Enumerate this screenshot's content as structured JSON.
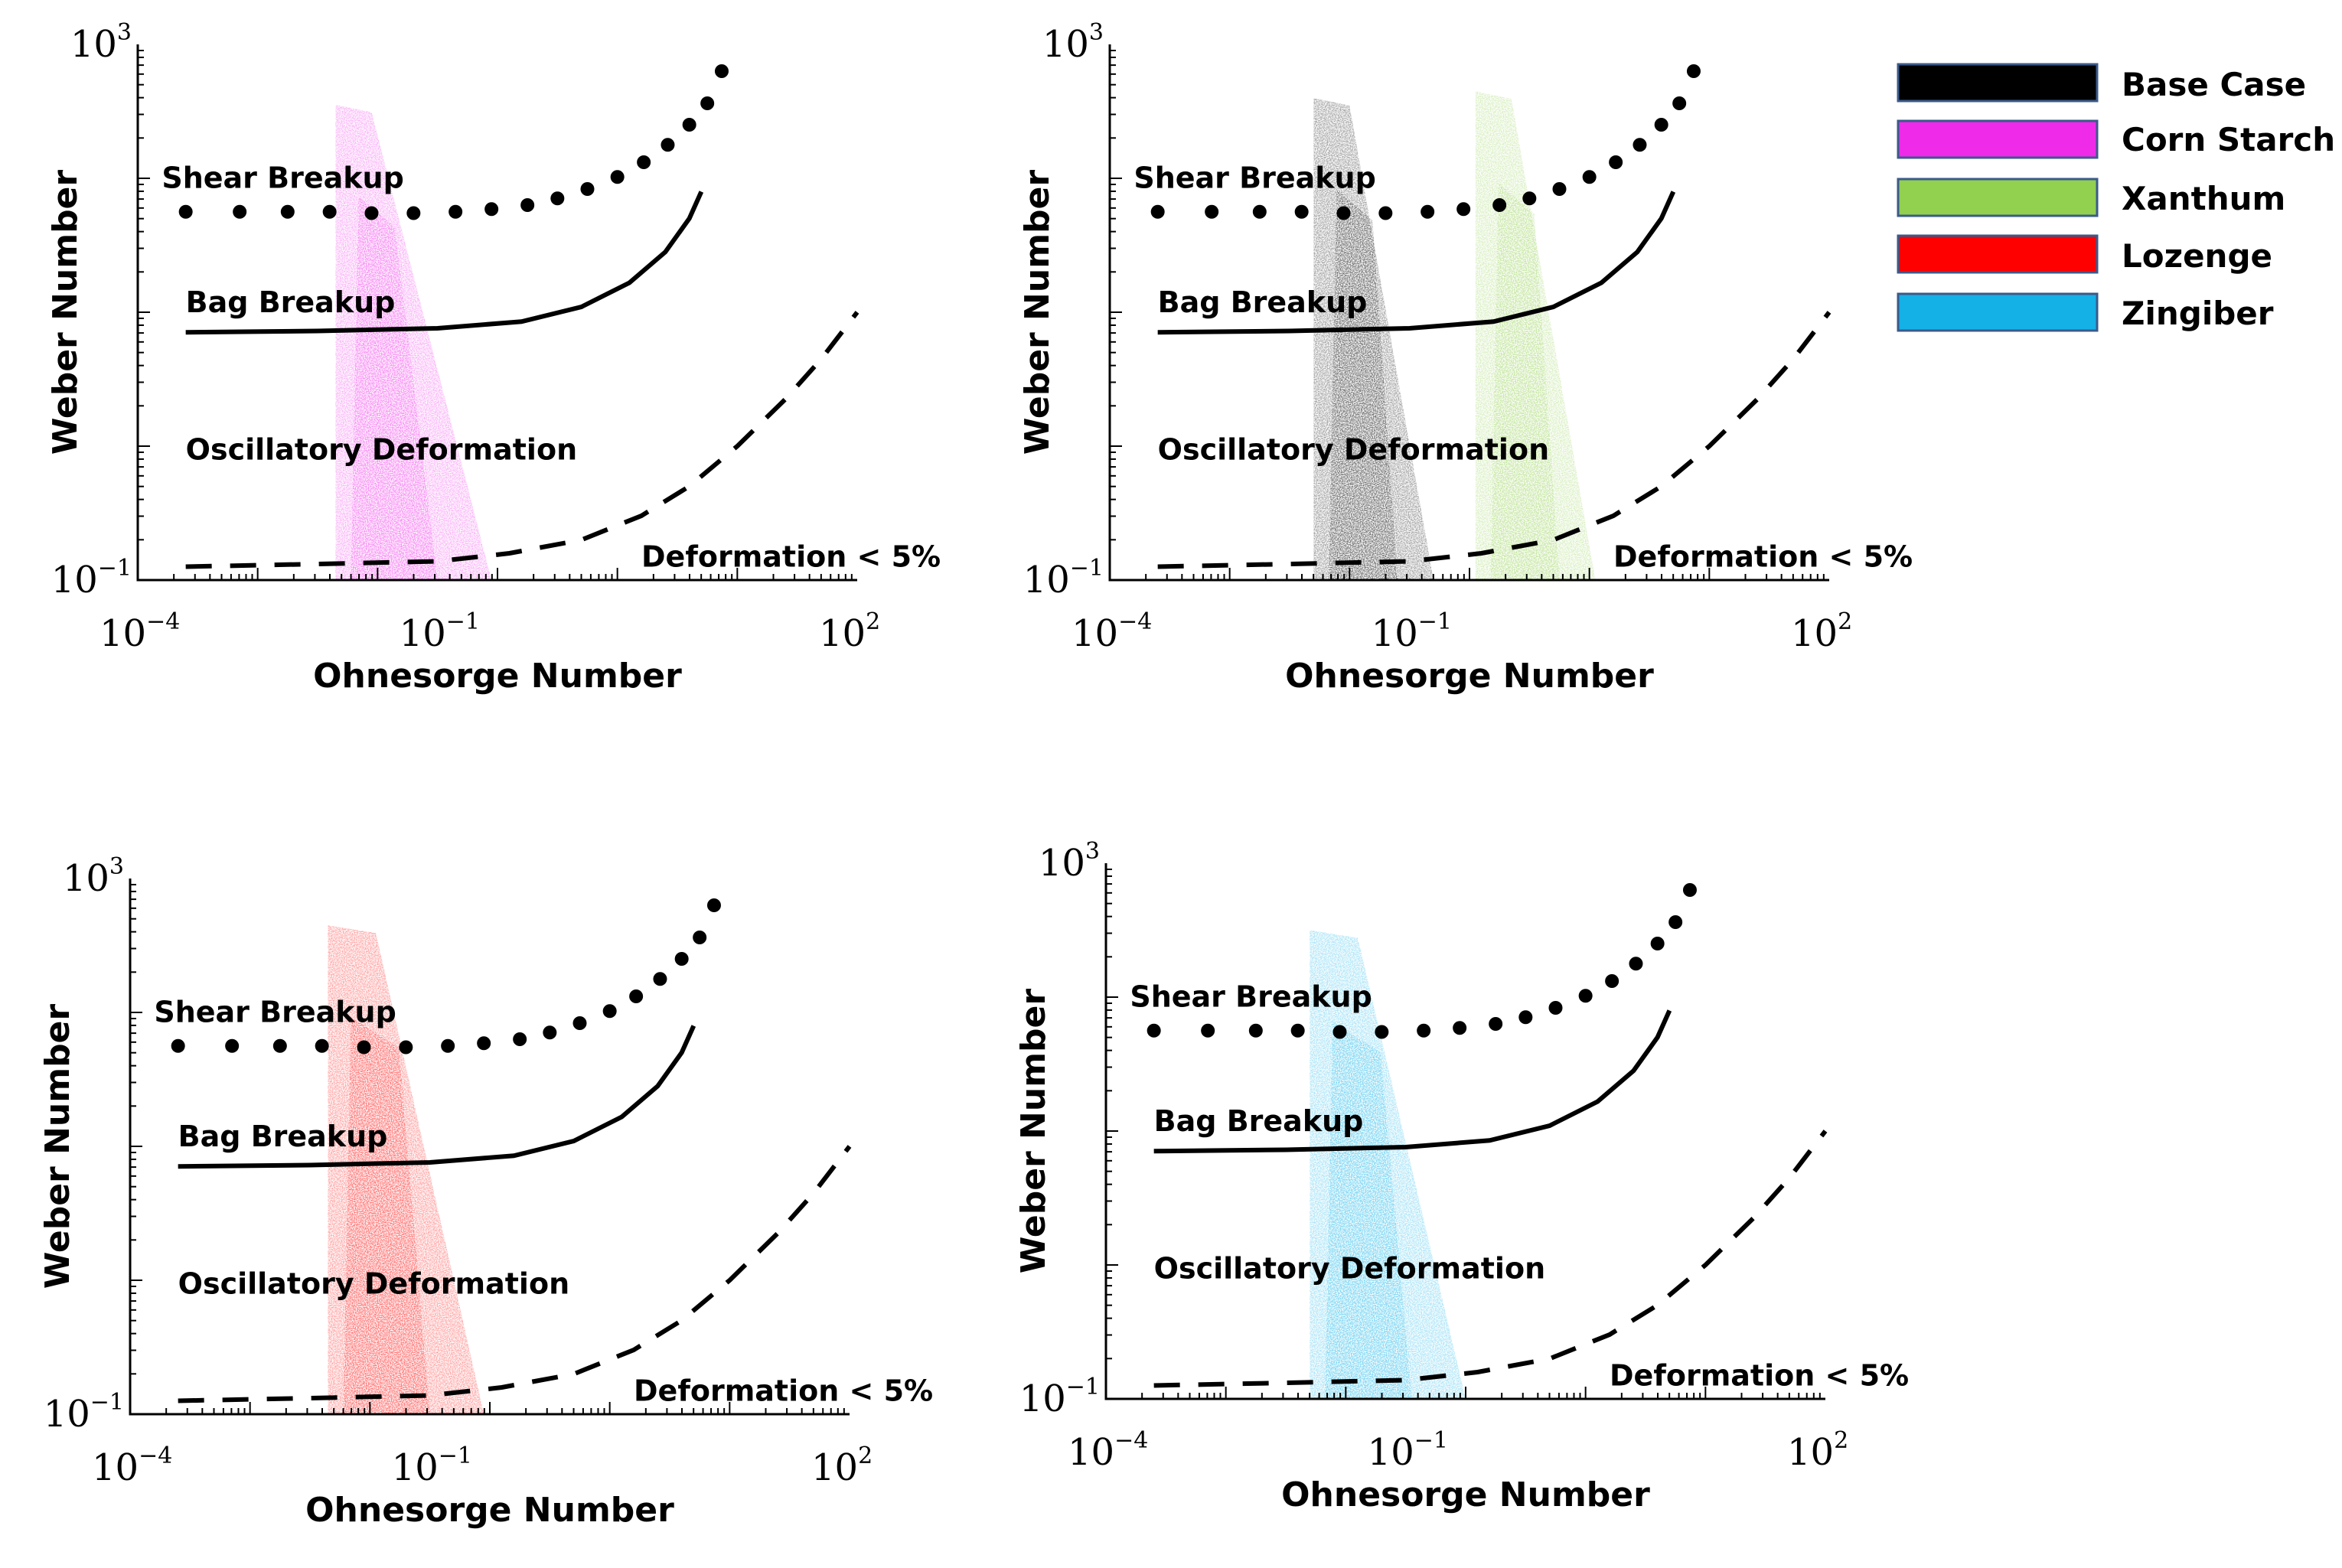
{
  "legend": {
    "items": [
      {
        "label": "Base Case",
        "color": "#000000"
      },
      {
        "label": "Corn Starch",
        "color": "#ef2ae9"
      },
      {
        "label": "Xanthum",
        "color": "#92d050"
      },
      {
        "label": "Lozenge",
        "color": "#ff0000"
      },
      {
        "label": "Zingiber",
        "color": "#14b1e7"
      }
    ]
  },
  "chart_data": [
    {
      "type": "scatter",
      "panel": "top-left",
      "xlabel": "Ohnesorge Number",
      "ylabel": "Weber Number",
      "xscale": "log",
      "yscale": "log",
      "xlim_log10": [
        -4,
        2
      ],
      "ylim_log10": [
        -1,
        3
      ],
      "x_ticks": [
        {
          "base": "10",
          "exp": "−4"
        },
        {
          "base": "10",
          "exp": "−1"
        },
        {
          "base": "10",
          "exp": "2"
        }
      ],
      "y_ticks": [
        {
          "base": "10",
          "exp": "3"
        },
        {
          "base": "10",
          "exp": "−1"
        }
      ],
      "region_labels": {
        "shear": "Shear Breakup",
        "bag": "Bag Breakup",
        "oscillatory": "Oscillatory Deformation",
        "deformation": "Deformation < 5%"
      },
      "series": [
        {
          "name": "Corn Starch",
          "color": "#ef2ae9",
          "cloud": {
            "left_x": [
              -2.35,
              -2.35
            ],
            "right_x": [
              -2.05,
              -1.05
            ],
            "y_range": [
              -1.0,
              2.55
            ]
          }
        }
      ]
    },
    {
      "type": "scatter",
      "panel": "top-right",
      "xlabel": "Ohnesorge Number",
      "ylabel": "Weber Number",
      "xscale": "log",
      "yscale": "log",
      "xlim_log10": [
        -4,
        2
      ],
      "ylim_log10": [
        -1,
        3
      ],
      "x_ticks": [
        {
          "base": "10",
          "exp": "−4"
        },
        {
          "base": "10",
          "exp": "−1"
        },
        {
          "base": "10",
          "exp": "2"
        }
      ],
      "y_ticks": [
        {
          "base": "10",
          "exp": "3"
        },
        {
          "base": "10",
          "exp": "−1"
        }
      ],
      "region_labels": {
        "shear": "Shear Breakup",
        "bag": "Bag Breakup",
        "oscillatory": "Oscillatory Deformation",
        "deformation": "Deformation < 5%"
      },
      "series": [
        {
          "name": "Base Case",
          "color": "#000000",
          "cloud": {
            "left_x": [
              -2.3,
              -2.3
            ],
            "right_x": [
              -2.0,
              -1.3
            ],
            "y_range": [
              -1.0,
              2.6
            ]
          }
        },
        {
          "name": "Xanthum",
          "color": "#92d050",
          "cloud": {
            "left_x": [
              -0.95,
              -0.95
            ],
            "right_x": [
              -0.65,
              0.05
            ],
            "y_range": [
              -1.0,
              2.65
            ]
          }
        }
      ]
    },
    {
      "type": "scatter",
      "panel": "bottom-left",
      "xlabel": "Ohnesorge Number",
      "ylabel": "Weber Number",
      "xscale": "log",
      "yscale": "log",
      "xlim_log10": [
        -4,
        2
      ],
      "ylim_log10": [
        -1,
        3
      ],
      "x_ticks": [
        {
          "base": "10",
          "exp": "−4"
        },
        {
          "base": "10",
          "exp": "−1"
        },
        {
          "base": "10",
          "exp": "2"
        }
      ],
      "y_ticks": [
        {
          "base": "10",
          "exp": "3"
        },
        {
          "base": "10",
          "exp": "−1"
        }
      ],
      "region_labels": {
        "shear": "Shear Breakup",
        "bag": "Bag Breakup",
        "oscillatory": "Oscillatory Deformation",
        "deformation": "Deformation < 5%"
      },
      "series": [
        {
          "name": "Lozenge",
          "color": "#ff0000",
          "cloud": {
            "left_x": [
              -2.35,
              -2.35
            ],
            "right_x": [
              -1.95,
              -1.05
            ],
            "y_range": [
              -1.0,
              2.65
            ]
          }
        }
      ]
    },
    {
      "type": "scatter",
      "panel": "bottom-right",
      "xlabel": "Ohnesorge Number",
      "ylabel": "Weber Number",
      "xscale": "log",
      "yscale": "log",
      "xlim_log10": [
        -4,
        2
      ],
      "ylim_log10": [
        -1,
        3
      ],
      "x_ticks": [
        {
          "base": "10",
          "exp": "−4"
        },
        {
          "base": "10",
          "exp": "−1"
        },
        {
          "base": "10",
          "exp": "2"
        }
      ],
      "y_ticks": [
        {
          "base": "10",
          "exp": "3"
        },
        {
          "base": "10",
          "exp": "−1"
        }
      ],
      "region_labels": {
        "shear": "Shear Breakup",
        "bag": "Bag Breakup",
        "oscillatory": "Oscillatory Deformation",
        "deformation": "Deformation < 5%"
      },
      "series": [
        {
          "name": "Zingiber",
          "color": "#14b1e7",
          "cloud": {
            "left_x": [
              -2.3,
              -2.3
            ],
            "right_x": [
              -1.9,
              -1.0
            ],
            "y_range": [
              -1.0,
              2.5
            ]
          }
        }
      ]
    }
  ],
  "boundaries": {
    "shear_breakup": {
      "x": [
        -3.6,
        -3.15,
        -2.75,
        -2.4,
        -2.05,
        -1.7,
        -1.35,
        -1.05,
        -0.75,
        -0.5,
        -0.25,
        0.0,
        0.22,
        0.42,
        0.6,
        0.75,
        0.87
      ],
      "y": [
        1.75,
        1.75,
        1.75,
        1.75,
        1.74,
        1.74,
        1.75,
        1.77,
        1.8,
        1.85,
        1.92,
        2.01,
        2.12,
        2.25,
        2.4,
        2.56,
        2.8
      ]
    },
    "bag_breakup": {
      "x": [
        -3.6,
        -2.5,
        -1.5,
        -0.8,
        -0.3,
        0.1,
        0.4,
        0.6,
        0.7
      ],
      "y": [
        0.85,
        0.86,
        0.88,
        0.93,
        1.04,
        1.22,
        1.45,
        1.7,
        1.9
      ]
    },
    "deformation_5pct": {
      "x": [
        -3.6,
        -2.5,
        -1.5,
        -0.9,
        -0.3,
        0.2,
        0.6,
        1.0,
        1.4,
        1.7,
        2.0
      ],
      "y": [
        -0.9,
        -0.88,
        -0.86,
        -0.8,
        -0.7,
        -0.52,
        -0.3,
        0.0,
        0.35,
        0.65,
        1.0
      ]
    }
  }
}
